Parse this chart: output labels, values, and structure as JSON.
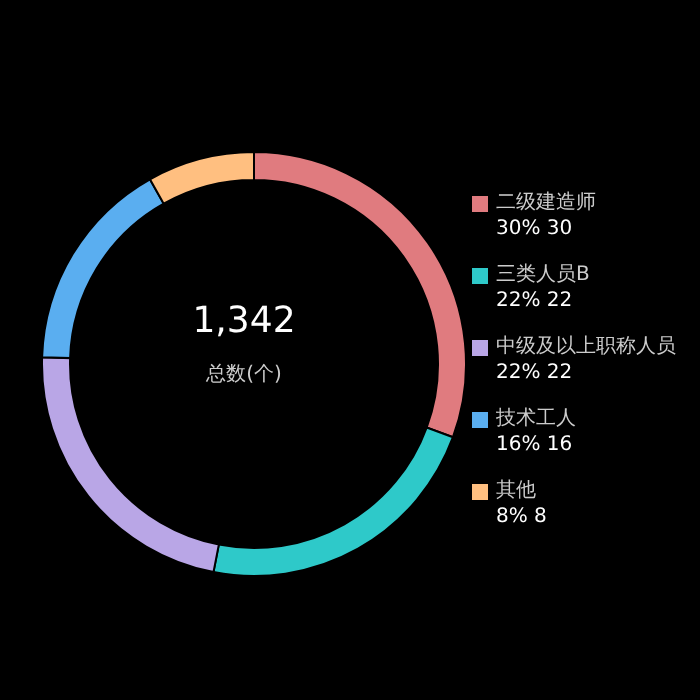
{
  "chart_data": {
    "type": "donut",
    "categories": [
      "二级建造师",
      "三类人员B",
      "中级及以上职称人员",
      "技术工人",
      "其他"
    ],
    "values": [
      30,
      22,
      22,
      16,
      8
    ],
    "value_labels": [
      "30% 30",
      "22% 22",
      "22% 22",
      "16% 16",
      "8% 8"
    ],
    "colors": [
      "#e07b7f",
      "#2ec9c9",
      "#b9a6e6",
      "#5aaef0",
      "#ffbf80"
    ],
    "legend": "right",
    "annotations": [
      "1,342",
      "总数(个)"
    ]
  }
}
